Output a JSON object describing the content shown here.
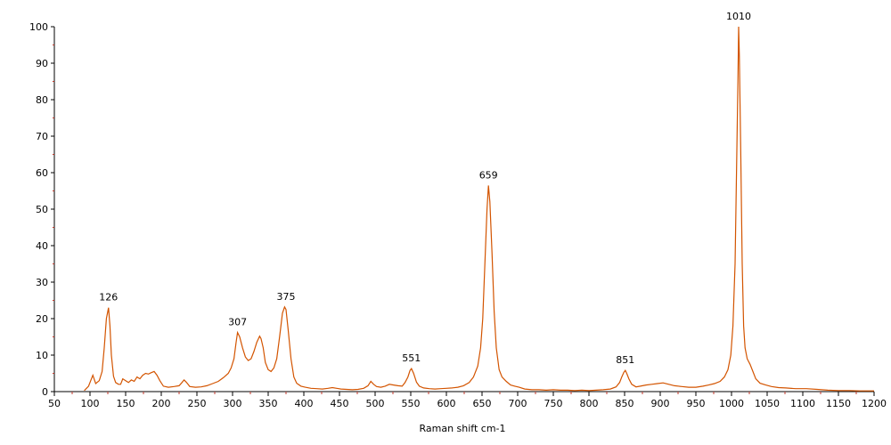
{
  "chart_data": {
    "type": "line",
    "title": "",
    "xlabel": "Raman shift cm-1",
    "ylabel": "",
    "xlim": [
      50,
      1200
    ],
    "ylim": [
      0,
      100
    ],
    "x_ticks": [
      50,
      100,
      150,
      200,
      250,
      300,
      350,
      400,
      450,
      500,
      550,
      600,
      650,
      700,
      750,
      800,
      850,
      900,
      950,
      1000,
      1050,
      1100,
      1150,
      1200
    ],
    "y_ticks": [
      0,
      10,
      20,
      30,
      40,
      50,
      60,
      70,
      80,
      90,
      100
    ],
    "grid": false,
    "line_color": "#d35400",
    "series": [
      {
        "x": [
          92,
          98,
          101,
          104,
          108,
          113,
          117,
          120,
          123,
          126,
          128,
          130,
          133,
          136,
          140,
          143,
          146,
          150,
          154,
          158,
          162,
          166,
          170,
          174,
          178,
          182,
          186,
          190,
          194,
          198,
          203,
          210,
          218,
          225,
          229,
          232,
          235,
          240,
          248,
          256,
          264,
          272,
          280,
          287,
          294,
          298,
          302,
          305,
          307,
          310,
          314,
          318,
          322,
          326,
          330,
          334,
          338,
          340,
          343,
          346,
          350,
          354,
          358,
          362,
          366,
          370,
          373,
          375,
          378,
          382,
          386,
          390,
          396,
          402,
          410,
          418,
          426,
          434,
          440,
          446,
          452,
          460,
          468,
          476,
          484,
          490,
          494,
          498,
          502,
          508,
          514,
          520,
          526,
          532,
          538,
          542,
          546,
          549,
          551,
          554,
          558,
          562,
          568,
          576,
          584,
          592,
          600,
          608,
          616,
          624,
          632,
          638,
          644,
          648,
          651,
          654,
          657,
          659,
          661,
          664,
          667,
          670,
          674,
          678,
          684,
          690,
          696,
          702,
          710,
          720,
          730,
          740,
          750,
          760,
          770,
          780,
          790,
          800,
          810,
          820,
          830,
          838,
          843,
          846,
          849,
          851,
          853,
          856,
          860,
          866,
          872,
          880,
          888,
          896,
          904,
          912,
          920,
          930,
          940,
          950,
          960,
          968,
          976,
          984,
          990,
          995,
          999,
          1002,
          1005,
          1007,
          1009,
          1010,
          1011,
          1013,
          1015,
          1017,
          1019,
          1022,
          1026,
          1030,
          1034,
          1040,
          1048,
          1056,
          1066,
          1076,
          1090,
          1105,
          1120,
          1135,
          1150,
          1165,
          1180,
          1200
        ],
        "y": [
          0.3,
          1.5,
          3.0,
          4.5,
          2.2,
          3.0,
          5.5,
          12,
          20,
          23,
          18,
          10,
          4.2,
          2.5,
          2.0,
          2.0,
          3.5,
          3.0,
          2.5,
          3.2,
          2.8,
          4.0,
          3.5,
          4.5,
          5.0,
          4.8,
          5.2,
          5.5,
          4.5,
          3.0,
          1.5,
          1.2,
          1.4,
          1.6,
          2.5,
          3.2,
          2.6,
          1.4,
          1.2,
          1.3,
          1.6,
          2.2,
          2.8,
          3.8,
          5.0,
          6.5,
          9.0,
          13.5,
          16.2,
          15.0,
          12.0,
          9.5,
          8.5,
          9.0,
          11.0,
          13.5,
          15.2,
          14.5,
          12.0,
          8.0,
          6.0,
          5.5,
          6.5,
          9.0,
          15.0,
          21.5,
          23.2,
          22.5,
          17.0,
          9.0,
          4.0,
          2.3,
          1.5,
          1.2,
          0.9,
          0.8,
          0.7,
          0.9,
          1.1,
          0.9,
          0.7,
          0.6,
          0.5,
          0.6,
          0.9,
          1.6,
          2.8,
          2.0,
          1.4,
          1.2,
          1.5,
          2.0,
          1.8,
          1.6,
          1.5,
          2.5,
          4.0,
          5.8,
          6.3,
          5.0,
          2.6,
          1.5,
          1.0,
          0.8,
          0.7,
          0.8,
          0.9,
          1.0,
          1.2,
          1.6,
          2.5,
          4.0,
          7.0,
          12.0,
          20.0,
          35.0,
          50.0,
          56.5,
          52.0,
          38.0,
          22.0,
          12.0,
          6.0,
          4.0,
          2.8,
          1.8,
          1.5,
          1.2,
          0.7,
          0.5,
          0.5,
          0.4,
          0.5,
          0.4,
          0.4,
          0.3,
          0.4,
          0.3,
          0.4,
          0.5,
          0.7,
          1.3,
          2.5,
          4.0,
          5.3,
          5.8,
          5.0,
          3.5,
          2.0,
          1.3,
          1.5,
          1.8,
          2.0,
          2.2,
          2.4,
          2.0,
          1.6,
          1.4,
          1.2,
          1.2,
          1.5,
          1.8,
          2.2,
          2.8,
          4.0,
          6.0,
          10.0,
          18.0,
          35.0,
          60.0,
          85.0,
          100.0,
          92.0,
          65.0,
          35.0,
          18.0,
          12.0,
          9.0,
          7.5,
          5.5,
          3.5,
          2.3,
          1.8,
          1.4,
          1.1,
          1.0,
          0.8,
          0.8,
          0.6,
          0.4,
          0.3,
          0.3,
          0.2,
          0.2
        ]
      }
    ],
    "annotations": [
      {
        "x": 126,
        "y": 23,
        "text": "126"
      },
      {
        "x": 307,
        "y": 16.2,
        "text": "307"
      },
      {
        "x": 375,
        "y": 23.2,
        "text": "375"
      },
      {
        "x": 551,
        "y": 6.3,
        "text": "551"
      },
      {
        "x": 659,
        "y": 56.5,
        "text": "659"
      },
      {
        "x": 851,
        "y": 5.8,
        "text": "851"
      },
      {
        "x": 1010,
        "y": 100,
        "text": "1010"
      }
    ]
  }
}
